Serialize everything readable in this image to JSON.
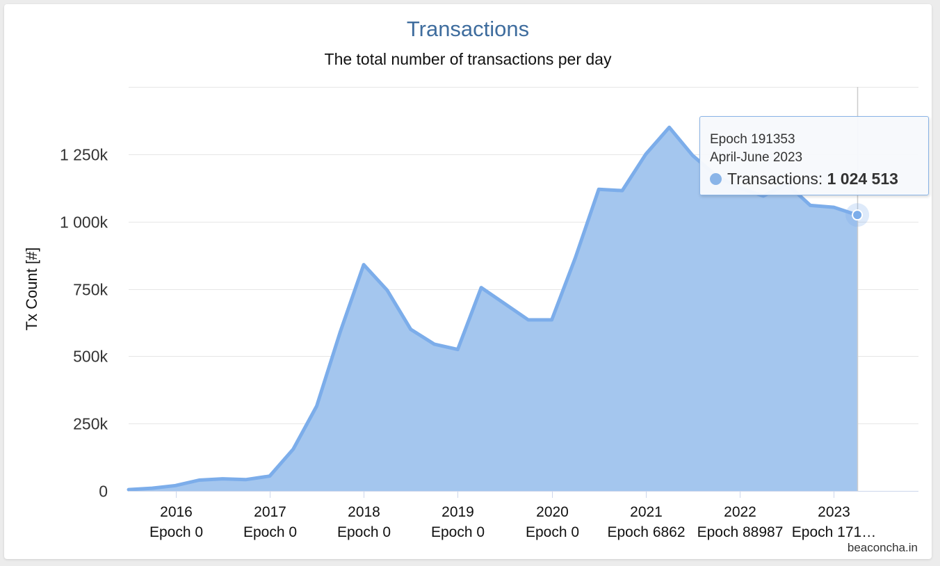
{
  "chart_data": {
    "type": "area",
    "title": "Transactions",
    "subtitle": "The total number of transactions per day",
    "ylabel": "Tx Count [#]",
    "xlabel": "",
    "ylim": [
      0,
      1500000
    ],
    "yticks": [
      0,
      250000,
      500000,
      750000,
      1000000,
      1250000
    ],
    "ytick_labels": [
      "0",
      "250k",
      "500k",
      "750k",
      "1 000k",
      "1 250k"
    ],
    "xlim": [
      2015.5,
      2023.9
    ],
    "xticks": [
      {
        "year": 2016,
        "label": "2016",
        "sublabel": "Epoch 0"
      },
      {
        "year": 2017,
        "label": "2017",
        "sublabel": "Epoch 0"
      },
      {
        "year": 2018,
        "label": "2018",
        "sublabel": "Epoch 0"
      },
      {
        "year": 2019,
        "label": "2019",
        "sublabel": "Epoch 0"
      },
      {
        "year": 2020,
        "label": "2020",
        "sublabel": "Epoch 0"
      },
      {
        "year": 2021,
        "label": "2021",
        "sublabel": "Epoch 6862"
      },
      {
        "year": 2022,
        "label": "2022",
        "sublabel": "Epoch 88987"
      },
      {
        "year": 2023,
        "label": "2023",
        "sublabel": "Epoch 171…"
      }
    ],
    "grid": true,
    "legend": "none",
    "series": [
      {
        "color": "#7cadea",
        "fill": "#a4c6ee",
        "x": [
          2015.5,
          2015.75,
          2016.0,
          2016.25,
          2016.5,
          2016.75,
          2017.0,
          2017.25,
          2017.5,
          2017.75,
          2018.0,
          2018.25,
          2018.5,
          2018.75,
          2019.0,
          2019.25,
          2019.5,
          2019.75,
          2020.0,
          2020.25,
          2020.5,
          2020.75,
          2021.0,
          2021.25,
          2021.5,
          2021.75,
          2022.0,
          2022.25,
          2022.5,
          2022.75,
          2023.0,
          2023.25
        ],
        "y": [
          5000,
          10000,
          20000,
          40000,
          45000,
          42000,
          55000,
          155000,
          315000,
          590000,
          840000,
          745000,
          600000,
          545000,
          525000,
          755000,
          695000,
          635000,
          635000,
          865000,
          1120000,
          1115000,
          1250000,
          1350000,
          1245000,
          1170000,
          1125000,
          1095000,
          1140000,
          1060000,
          1053000,
          1024513
        ]
      }
    ],
    "highlight": {
      "x": 2023.25,
      "y": 1024513
    }
  },
  "tooltip": {
    "epoch": "Epoch 191353",
    "period": "April-June 2023",
    "series_label": "Transactions: ",
    "value": "1 024 513"
  },
  "credits": "beaconcha.in"
}
